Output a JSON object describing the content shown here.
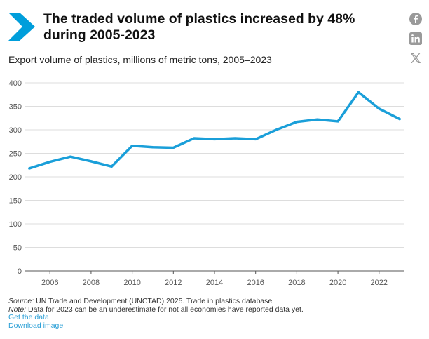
{
  "header": {
    "title_line1": "The traded volume of plastics increased by 48%",
    "title_line2": "during 2005-2023",
    "subtitle": "Export volume of plastics, millions of metric tons, 2005–2023"
  },
  "social": {
    "facebook_icon": "facebook-icon",
    "linkedin_icon": "linkedin-icon",
    "x_icon": "x-icon"
  },
  "colors": {
    "brand": "#009edb",
    "line": "#1a9fd9",
    "grid": "#dddddd",
    "axis": "#555555",
    "link": "#2a9fd6"
  },
  "chart_data": {
    "type": "line",
    "title": "",
    "xlabel": "",
    "ylabel": "",
    "x": [
      2005,
      2006,
      2007,
      2008,
      2009,
      2010,
      2011,
      2012,
      2013,
      2014,
      2015,
      2016,
      2017,
      2018,
      2019,
      2020,
      2021,
      2022,
      2023
    ],
    "series": [
      {
        "values": [
          218,
          232,
          243,
          233,
          222,
          266,
          263,
          262,
          282,
          280,
          282,
          280,
          300,
          317,
          322,
          318,
          380,
          345,
          323
        ]
      }
    ],
    "ylim": [
      0,
      400
    ],
    "yticks": [
      0,
      50,
      100,
      150,
      200,
      250,
      300,
      350,
      400
    ],
    "xticks": [
      2006,
      2008,
      2010,
      2012,
      2014,
      2016,
      2018,
      2020,
      2022
    ],
    "grid": true,
    "legend": "none"
  },
  "footer": {
    "source_label": "Source:",
    "source_text": " UN Trade and Development (UNCTAD) 2025. Trade in plastics database",
    "note_label": "Note:",
    "note_text": " Data for 2023 can be an underestimate for not all economies have reported data yet.",
    "get_data": "Get the data",
    "download": "Download image"
  }
}
